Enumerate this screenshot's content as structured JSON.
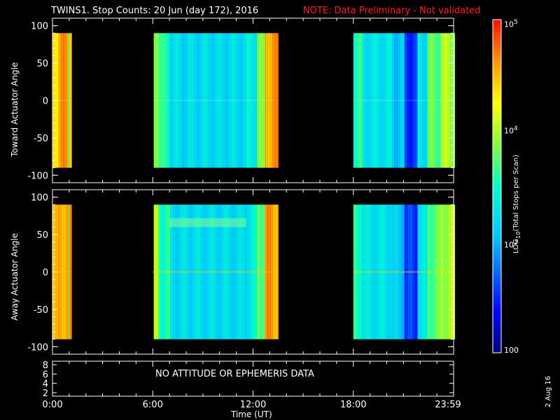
{
  "title": "TWINS1. Stop Counts: 20 Jun (day 172), 2016",
  "note": "NOTE: Data Preliminary - Not validated",
  "colors": {
    "title": "#ffffff",
    "note": "#ff2020",
    "background": "#000000",
    "axis": "#ffffff"
  },
  "panels": {
    "toward": {
      "ylabel": "Toward Actuator Angle"
    },
    "away": {
      "ylabel": "Away Actuator Angle"
    },
    "attitude": {
      "message": "NO ATTITUDE OR EPHEMERIS DATA",
      "yticks": [
        "8",
        "6",
        "4",
        "2"
      ]
    }
  },
  "colorbar": {
    "label": "LOG10(Total Stops per Scan)",
    "ticks": [
      "10^5",
      "10^4",
      "10^3",
      "100"
    ],
    "colormap": "rainbow (blue-cyan-green-yellow-red)"
  },
  "side_date": "2 Aug 16",
  "chart_data": [
    {
      "type": "heatmap",
      "title": "TWINS1. Stop Counts: 20 Jun (day 172), 2016",
      "xlabel": "Time (UT)",
      "ylabel": "Toward Actuator Angle",
      "xlim": [
        0,
        24
      ],
      "ylim": [
        -110,
        110
      ],
      "scale": "log",
      "x_tick_labels": [
        "0:00",
        "6:00",
        "12:00",
        "18:00",
        "23:59"
      ],
      "y_tick_labels": [
        "100",
        "50",
        "0",
        "-50",
        "-100"
      ],
      "angle_range": [
        -90,
        90
      ],
      "data_segments": [
        {
          "start_hour": 0.0,
          "end_hour": 1.1,
          "level": "high (~10^4.5 - 10^5)"
        },
        {
          "start_hour": 6.0,
          "end_hour": 13.5,
          "level": "moderate (~10^3 - 10^3.5)"
        },
        {
          "start_hour": 18.0,
          "end_hour": 24.0,
          "level": "moderate, minimum ~21:30 (~10^2.7)"
        }
      ]
    },
    {
      "type": "heatmap",
      "xlabel": "Time (UT)",
      "ylabel": "Away Actuator Angle",
      "xlim": [
        0,
        24
      ],
      "ylim": [
        -110,
        110
      ],
      "scale": "log",
      "x_tick_labels": [
        "0:00",
        "6:00",
        "12:00",
        "18:00",
        "23:59"
      ],
      "y_tick_labels": [
        "100",
        "50",
        "0",
        "-50",
        "-100"
      ],
      "angle_range": [
        -90,
        90
      ],
      "data_segments": [
        {
          "start_hour": 0.0,
          "end_hour": 1.1,
          "level": "high (~10^4.7)"
        },
        {
          "start_hour": 6.0,
          "end_hour": 13.5,
          "level": "moderate (~10^3.2), peaks near 12:45"
        },
        {
          "start_hour": 18.0,
          "end_hour": 24.0,
          "level": "moderate, minimum ~21:30 (~10^2.6)"
        }
      ]
    }
  ]
}
